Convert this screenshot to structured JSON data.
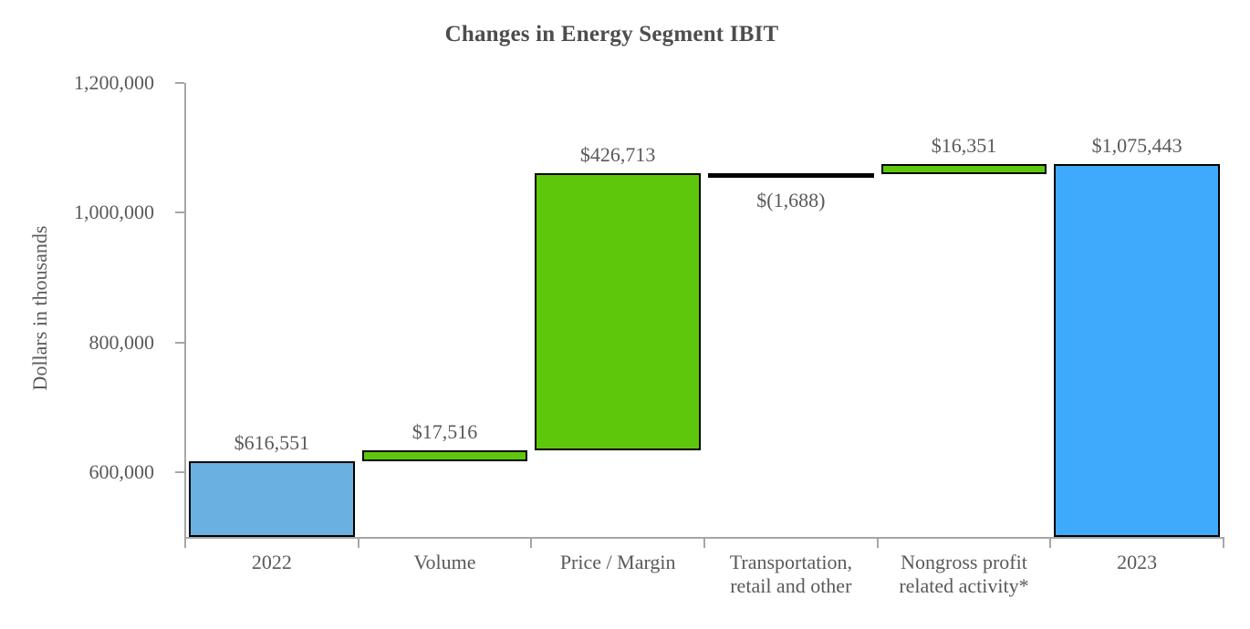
{
  "chart_data": {
    "type": "bar",
    "subtype": "waterfall",
    "title": "Changes in Energy Segment IBIT",
    "xlabel": "",
    "ylabel": "Dollars in thousands",
    "ylim": [
      500000,
      1200000
    ],
    "gridlines": false,
    "legend": "none",
    "yticks": [
      {
        "value": 600000,
        "label": "600,000"
      },
      {
        "value": 800000,
        "label": "800,000"
      },
      {
        "value": 1000000,
        "label": "1,000,000"
      },
      {
        "value": 1200000,
        "label": "1,200,000"
      }
    ],
    "categories": [
      [
        "2022"
      ],
      [
        "Volume"
      ],
      [
        "Price / Margin"
      ],
      [
        "Transportation,",
        "retail and other"
      ],
      [
        "Nongross profit",
        "related activity*"
      ],
      [
        "2023"
      ]
    ],
    "bars": [
      {
        "category": "2022",
        "value": 616551,
        "value_label": "$616,551",
        "start": 500000,
        "end": 616551,
        "role": "total-start",
        "color": "#6ab0e0",
        "label_position": "above"
      },
      {
        "category": "Volume",
        "value": 17516,
        "value_label": "$17,516",
        "start": 616551,
        "end": 634067,
        "role": "increase",
        "color": "#5ec70b",
        "label_position": "above"
      },
      {
        "category": "Price / Margin",
        "value": 426713,
        "value_label": "$426,713",
        "start": 634067,
        "end": 1060780,
        "role": "increase",
        "color": "#5ec70b",
        "label_position": "above"
      },
      {
        "category": "Transportation, retail and other",
        "value": -1688,
        "value_label": "$(1,688)",
        "start": 1059092,
        "end": 1060780,
        "role": "decrease",
        "color": "#000000",
        "label_position": "below"
      },
      {
        "category": "Nongross profit related activity*",
        "value": 16351,
        "value_label": "$16,351",
        "start": 1059092,
        "end": 1075443,
        "role": "increase",
        "color": "#5ec70b",
        "label_position": "above"
      },
      {
        "category": "2023",
        "value": 1075443,
        "value_label": "$1,075,443",
        "start": 500000,
        "end": 1075443,
        "role": "total-end",
        "color": "#3faafc",
        "label_position": "above"
      }
    ],
    "colors": {
      "total_2022_bar": "#6ab0e0",
      "total_2023_bar": "#3faafc",
      "increase_bar": "#5ec70b",
      "decrease_bar": "#000000",
      "bar_border": "#000000",
      "axis": "#a6a6a6",
      "text": "#595959",
      "title_text": "#4d4d4d"
    }
  }
}
